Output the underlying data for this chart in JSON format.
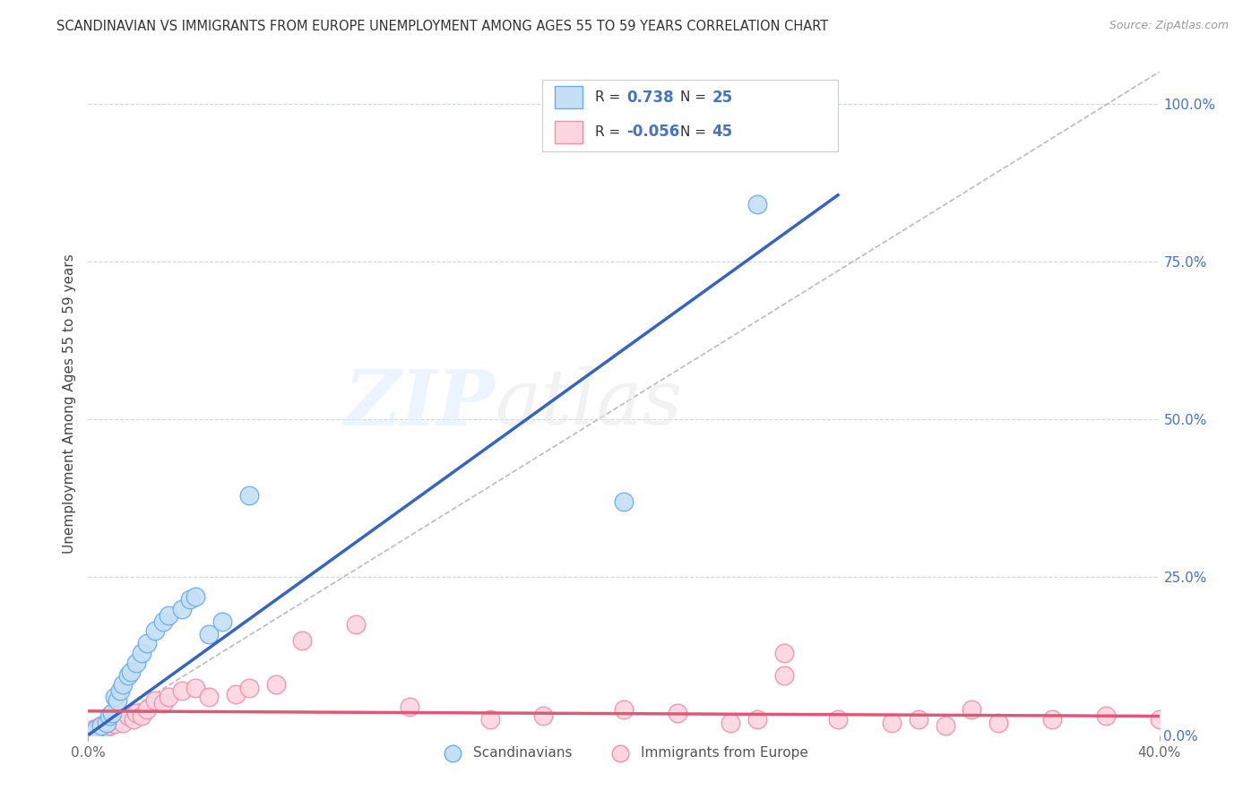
{
  "title": "SCANDINAVIAN VS IMMIGRANTS FROM EUROPE UNEMPLOYMENT AMONG AGES 55 TO 59 YEARS CORRELATION CHART",
  "source": "Source: ZipAtlas.com",
  "ylabel": "Unemployment Among Ages 55 to 59 years",
  "right_yticks": [
    "0.0%",
    "25.0%",
    "50.0%",
    "75.0%",
    "100.0%"
  ],
  "right_ytick_vals": [
    0.0,
    0.25,
    0.5,
    0.75,
    1.0
  ],
  "background_color": "#ffffff",
  "watermark_zip": "ZIP",
  "watermark_atlas": "atlas",
  "blue_color": "#6aaee8",
  "blue_fill": "#c5dff5",
  "pink_color": "#f090a8",
  "pink_fill": "#fcd5e0",
  "trendline_blue": "#3565c0",
  "trendline_pink": "#e05878",
  "diagonal_color": "#bbbbbb",
  "grid_color": "#c8d8e8",
  "xmin": 0.0,
  "xmax": 0.4,
  "ymin": 0.0,
  "ymax": 1.05,
  "blue_r": "0.738",
  "blue_n": "25",
  "pink_r": "-0.056",
  "pink_n": "45",
  "blue_scatter_x": [
    0.003,
    0.005,
    0.007,
    0.008,
    0.009,
    0.01,
    0.011,
    0.012,
    0.013,
    0.015,
    0.016,
    0.018,
    0.02,
    0.022,
    0.025,
    0.028,
    0.03,
    0.035,
    0.038,
    0.04,
    0.045,
    0.05,
    0.06,
    0.2,
    0.25
  ],
  "blue_scatter_y": [
    0.01,
    0.015,
    0.02,
    0.03,
    0.035,
    0.06,
    0.055,
    0.07,
    0.08,
    0.095,
    0.1,
    0.115,
    0.13,
    0.145,
    0.165,
    0.18,
    0.19,
    0.2,
    0.215,
    0.22,
    0.16,
    0.18,
    0.38,
    0.37,
    0.84
  ],
  "pink_scatter_x": [
    0.002,
    0.003,
    0.004,
    0.005,
    0.006,
    0.007,
    0.008,
    0.009,
    0.01,
    0.012,
    0.013,
    0.015,
    0.017,
    0.018,
    0.02,
    0.022,
    0.025,
    0.028,
    0.03,
    0.035,
    0.04,
    0.045,
    0.055,
    0.06,
    0.07,
    0.08,
    0.1,
    0.12,
    0.15,
    0.17,
    0.2,
    0.22,
    0.24,
    0.25,
    0.26,
    0.28,
    0.3,
    0.32,
    0.34,
    0.36,
    0.38,
    0.4,
    0.26,
    0.31,
    0.33
  ],
  "pink_scatter_y": [
    0.01,
    0.008,
    0.012,
    0.015,
    0.01,
    0.012,
    0.015,
    0.02,
    0.018,
    0.025,
    0.02,
    0.03,
    0.025,
    0.035,
    0.03,
    0.04,
    0.055,
    0.05,
    0.06,
    0.07,
    0.075,
    0.06,
    0.065,
    0.075,
    0.08,
    0.15,
    0.175,
    0.045,
    0.025,
    0.03,
    0.04,
    0.035,
    0.02,
    0.025,
    0.13,
    0.025,
    0.02,
    0.015,
    0.02,
    0.025,
    0.03,
    0.025,
    0.095,
    0.025,
    0.04
  ],
  "blue_trendline_x": [
    0.0,
    0.28
  ],
  "blue_trendline_y": [
    0.0,
    0.855
  ],
  "pink_trendline_x": [
    0.0,
    0.4
  ],
  "pink_trendline_y": [
    0.038,
    0.03
  ]
}
